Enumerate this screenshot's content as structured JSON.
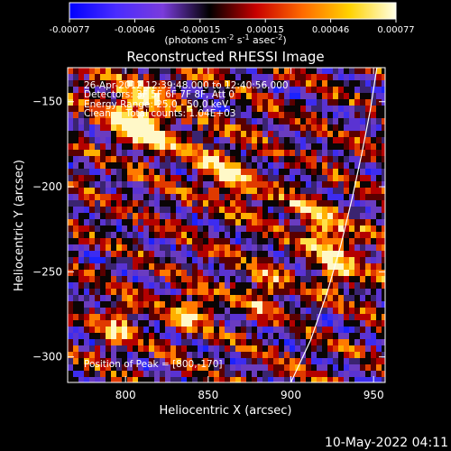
{
  "colorbar": {
    "ticks": [
      "-0.00077",
      "-0.00046",
      "-0.00015",
      "0.00015",
      "0.00046",
      "0.00077"
    ],
    "unit_main": "(photons cm",
    "unit_exp1": "-2",
    "unit_mid": " s",
    "unit_exp2": "-1",
    "unit_mid2": " asec",
    "unit_exp3": "-2",
    "unit_end": ")",
    "stops": [
      "#0000ff",
      "#4a2cff",
      "#7a3cdc",
      "#000000",
      "#c80000",
      "#ff6a00",
      "#ffd200",
      "#ffffe6"
    ]
  },
  "chart_data": {
    "type": "heatmap",
    "title": "Reconstructed RHESSI Image",
    "xlabel": "Heliocentric X (arcsec)",
    "ylabel": "Heliocentric Y (arcsec)",
    "xlim": [
      765,
      957
    ],
    "ylim": [
      -315,
      -130
    ],
    "x_ticks": [
      800,
      850,
      900,
      950
    ],
    "y_ticks": [
      -150,
      -200,
      -250,
      -300
    ],
    "value_range": [
      -0.00077,
      0.00077
    ],
    "annotations": [
      "26-Apr-2012 12:39:48.000 to 12:40:56.000",
      "Detectors: 3F 5F 6F 7F 8F, Att 0",
      "Energy Range: 25.0 - 50.0 keV",
      "Clean     Total counts: 1.04E+03"
    ],
    "peak_label": "Position of Peak = [800,-170]",
    "peak": [
      800,
      -170
    ],
    "limb_curve": [
      [
        900,
        -315
      ],
      [
        912,
        -290
      ],
      [
        922,
        -262
      ],
      [
        930,
        -235
      ],
      [
        937,
        -207
      ],
      [
        943,
        -180
      ],
      [
        948,
        -155
      ],
      [
        952,
        -130
      ]
    ]
  },
  "timestamp": "10-May-2022 04:11"
}
